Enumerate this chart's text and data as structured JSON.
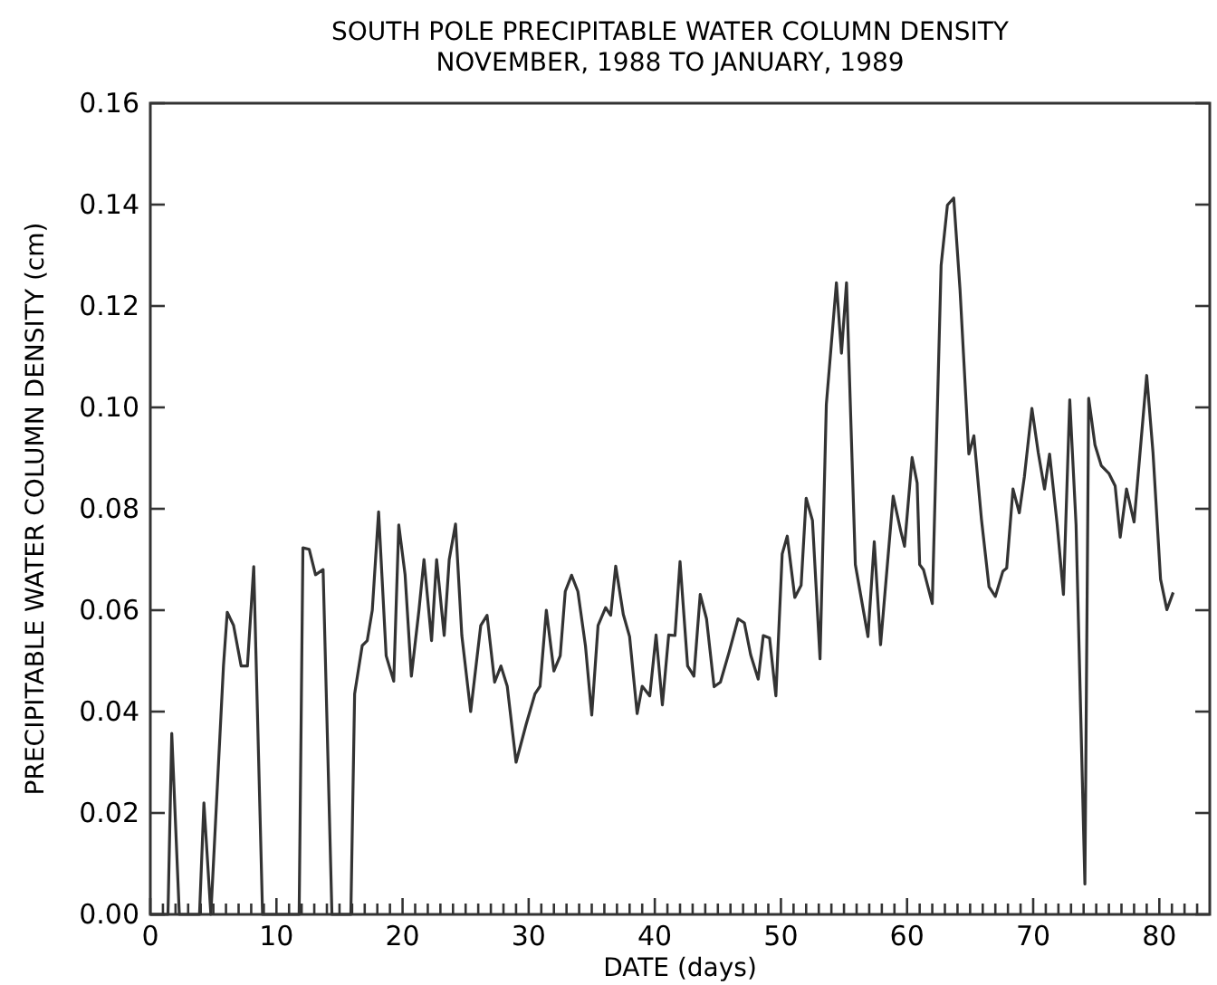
{
  "chart_data": {
    "type": "line",
    "title": "SOUTH POLE PRECIPITABLE WATER COLUMN DENSITY",
    "subtitle": "NOVEMBER, 1988 TO JANUARY, 1989",
    "xlabel": "DATE (days)",
    "ylabel": "PRECIPITABLE WATER COLUMN DENSITY (cm)",
    "xlim": [
      0,
      84
    ],
    "ylim": [
      0,
      0.16
    ],
    "xticks": [
      0,
      {
        "value": 1,
        "label": null
      },
      {
        "value": 2,
        "label": null
      },
      {
        "value": 3,
        "label": null
      },
      {
        "value": 4,
        "label": null
      },
      {
        "value": 5,
        "label": null
      },
      {
        "value": 6,
        "label": null
      },
      {
        "value": 7,
        "label": null
      },
      {
        "value": 8,
        "label": null
      },
      {
        "value": 9,
        "label": null
      },
      10,
      {
        "value": 11,
        "label": null
      },
      {
        "value": 12,
        "label": null
      },
      {
        "value": 13,
        "label": null
      },
      {
        "value": 14,
        "label": null
      },
      {
        "value": 15,
        "label": null
      },
      {
        "value": 16,
        "label": null
      },
      {
        "value": 17,
        "label": null
      },
      {
        "value": 18,
        "label": null
      },
      {
        "value": 19,
        "label": null
      },
      20,
      {
        "value": 21,
        "label": null
      },
      {
        "value": 22,
        "label": null
      },
      {
        "value": 23,
        "label": null
      },
      {
        "value": 24,
        "label": null
      },
      {
        "value": 25,
        "label": null
      },
      {
        "value": 26,
        "label": null
      },
      {
        "value": 27,
        "label": null
      },
      {
        "value": 28,
        "label": null
      },
      {
        "value": 29,
        "label": null
      },
      30,
      {
        "value": 31,
        "label": null
      },
      {
        "value": 32,
        "label": null
      },
      {
        "value": 33,
        "label": null
      },
      {
        "value": 34,
        "label": null
      },
      {
        "value": 35,
        "label": null
      },
      {
        "value": 36,
        "label": null
      },
      {
        "value": 37,
        "label": null
      },
      {
        "value": 38,
        "label": null
      },
      {
        "value": 39,
        "label": null
      },
      40,
      {
        "value": 41,
        "label": null
      },
      {
        "value": 42,
        "label": null
      },
      {
        "value": 43,
        "label": null
      },
      {
        "value": 44,
        "label": null
      },
      {
        "value": 45,
        "label": null
      },
      {
        "value": 46,
        "label": null
      },
      {
        "value": 47,
        "label": null
      },
      {
        "value": 48,
        "label": null
      },
      {
        "value": 49,
        "label": null
      },
      50,
      {
        "value": 51,
        "label": null
      },
      {
        "value": 52,
        "label": null
      },
      {
        "value": 53,
        "label": null
      },
      {
        "value": 54,
        "label": null
      },
      {
        "value": 55,
        "label": null
      },
      {
        "value": 56,
        "label": null
      },
      {
        "value": 57,
        "label": null
      },
      {
        "value": 58,
        "label": null
      },
      {
        "value": 59,
        "label": null
      },
      60,
      {
        "value": 61,
        "label": null
      },
      {
        "value": 62,
        "label": null
      },
      {
        "value": 63,
        "label": null
      },
      {
        "value": 64,
        "label": null
      },
      {
        "value": 65,
        "label": null
      },
      {
        "value": 66,
        "label": null
      },
      {
        "value": 67,
        "label": null
      },
      {
        "value": 68,
        "label": null
      },
      {
        "value": 69,
        "label": null
      },
      70,
      {
        "value": 71,
        "label": null
      },
      {
        "value": 72,
        "label": null
      },
      {
        "value": 73,
        "label": null
      },
      {
        "value": 74,
        "label": null
      },
      {
        "value": 75,
        "label": null
      },
      {
        "value": 76,
        "label": null
      },
      {
        "value": 77,
        "label": null
      },
      {
        "value": 78,
        "label": null
      },
      {
        "value": 79,
        "label": null
      },
      80,
      {
        "value": 81,
        "label": null
      },
      {
        "value": 82,
        "label": null
      },
      {
        "value": 83,
        "label": null
      }
    ],
    "yticks": [
      {
        "value": 0,
        "label": "0.00"
      },
      {
        "value": 0.02,
        "label": "0.02"
      },
      {
        "value": 0.04,
        "label": "0.04"
      },
      {
        "value": 0.06,
        "label": "0.06"
      },
      {
        "value": 0.08,
        "label": "0.08"
      },
      {
        "value": 0.1,
        "label": "0.10"
      },
      {
        "value": 0.12,
        "label": "0.12"
      },
      {
        "value": 0.14,
        "label": "0.14"
      },
      {
        "value": 0.16,
        "label": "0.16"
      }
    ],
    "grid": false,
    "marker": "none",
    "line_style": "solid",
    "series": [
      {
        "color": "#333333",
        "x": [
          0,
          1.4,
          1.7,
          2.3,
          3.9,
          4.25,
          4.8,
          5.8,
          6.1,
          6.6,
          7.2,
          7.7,
          8.2,
          8.9,
          11.8,
          12.1,
          12.6,
          13.1,
          13.7,
          14.4,
          15.9,
          16.2,
          16.8,
          17.2,
          17.6,
          18.1,
          18.7,
          19.3,
          19.7,
          20.2,
          20.7,
          21.3,
          21.7,
          22.3,
          22.7,
          23.3,
          23.7,
          24.2,
          24.7,
          25.4,
          26.2,
          26.7,
          27.3,
          27.8,
          28.3,
          29.0,
          29.8,
          30.5,
          30.9,
          31.4,
          32.0,
          32.5,
          32.9,
          33.4,
          33.9,
          34.5,
          35.0,
          35.5,
          36.1,
          36.5,
          36.9,
          37.5,
          38.0,
          38.6,
          39.0,
          39.6,
          40.1,
          40.6,
          41.1,
          41.6,
          42.0,
          42.6,
          43.1,
          43.6,
          44.1,
          44.7,
          45.2,
          45.9,
          46.6,
          47.1,
          47.6,
          48.2,
          48.6,
          49.1,
          49.6,
          50.1,
          50.5,
          51.1,
          51.6,
          52.0,
          52.5,
          53.1,
          53.6,
          54.4,
          54.8,
          55.2,
          55.9,
          56.9,
          57.4,
          57.9,
          58.9,
          59.5,
          59.8,
          60.4,
          60.8,
          61.0,
          61.3,
          62.0,
          62.7,
          63.2,
          63.7,
          64.2,
          64.9,
          65.3,
          65.9,
          66.5,
          67.0,
          67.6,
          67.9,
          68.4,
          68.9,
          69.3,
          69.9,
          70.4,
          70.9,
          71.3,
          71.9,
          72.4,
          72.9,
          73.4,
          74.1,
          74.4,
          74.9,
          75.4,
          76.0,
          76.5,
          76.9,
          77.4,
          78.0,
          79.0,
          79.5,
          80.1,
          80.6,
          81.1
        ],
        "values": [
          0,
          0,
          0.0357,
          0,
          0,
          0.022,
          0,
          0.049,
          0.0596,
          0.057,
          0.049,
          0.049,
          0.0686,
          0,
          0,
          0.0723,
          0.072,
          0.067,
          0.068,
          0,
          0,
          0.0435,
          0.053,
          0.054,
          0.06,
          0.0794,
          0.051,
          0.046,
          0.0768,
          0.067,
          0.047,
          0.06,
          0.07,
          0.054,
          0.07,
          0.055,
          0.07,
          0.077,
          0.055,
          0.04,
          0.057,
          0.059,
          0.0458,
          0.049,
          0.045,
          0.03,
          0.0375,
          0.0435,
          0.045,
          0.06,
          0.048,
          0.051,
          0.0637,
          0.0669,
          0.0637,
          0.053,
          0.0393,
          0.057,
          0.0605,
          0.059,
          0.0687,
          0.0592,
          0.0548,
          0.0396,
          0.045,
          0.0431,
          0.0551,
          0.0413,
          0.0551,
          0.055,
          0.0696,
          0.049,
          0.047,
          0.0631,
          0.0583,
          0.0449,
          0.0458,
          0.0518,
          0.0583,
          0.0575,
          0.0512,
          0.0464,
          0.055,
          0.0545,
          0.0431,
          0.0711,
          0.0746,
          0.0625,
          0.0649,
          0.0821,
          0.0777,
          0.0504,
          0.1006,
          0.1246,
          0.1107,
          0.1246,
          0.069,
          0.0548,
          0.0735,
          0.0532,
          0.0825,
          0.0756,
          0.0726,
          0.0901,
          0.0851,
          0.069,
          0.068,
          0.0613,
          0.128,
          0.1399,
          0.1413,
          0.1232,
          0.0908,
          0.0944,
          0.0779,
          0.0646,
          0.0627,
          0.0677,
          0.0683,
          0.0839,
          0.0792,
          0.0863,
          0.0998,
          0.0911,
          0.0839,
          0.0908,
          0.077,
          0.0631,
          0.1015,
          0.0768,
          0.006,
          0.1018,
          0.0926,
          0.0885,
          0.087,
          0.0845,
          0.0744,
          0.0839,
          0.0774,
          0.1063,
          0.0911,
          0.0661,
          0.0601,
          0.0635
        ]
      }
    ]
  }
}
